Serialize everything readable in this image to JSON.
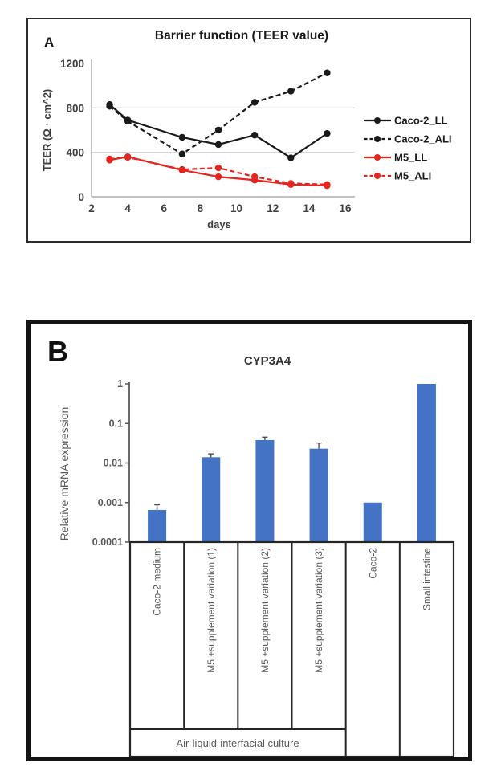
{
  "panel_a": {
    "label": "A",
    "title": "Barrier function (TEER value)",
    "chart_data": {
      "type": "line",
      "x": [
        3,
        4,
        7,
        9,
        11,
        13,
        15
      ],
      "xlabel": "days",
      "ylabel": "TEER (Ω · cm^2)",
      "xticks": [
        2,
        4,
        6,
        8,
        10,
        12,
        14,
        16
      ],
      "yticks": [
        0,
        400,
        800,
        1200
      ],
      "xlim": [
        2,
        16
      ],
      "ylim": [
        0,
        1200
      ],
      "gridlines_y": [
        400,
        800
      ],
      "grid": true,
      "legend_position": "right",
      "series": [
        {
          "name": "Caco-2_LL",
          "color": "#1a1a1a",
          "dash": "solid",
          "values": [
            830,
            690,
            535,
            470,
            555,
            350,
            570
          ]
        },
        {
          "name": "Caco-2_ALI",
          "color": "#1a1a1a",
          "dash": "dashed",
          "values": [
            815,
            680,
            385,
            600,
            850,
            950,
            1115
          ]
        },
        {
          "name": "M5_LL",
          "color": "#e8241f",
          "dash": "solid",
          "values": [
            330,
            360,
            240,
            180,
            150,
            110,
            100
          ]
        },
        {
          "name": "M5_ALI",
          "color": "#e8241f",
          "dash": "dashed",
          "values": [
            340,
            355,
            245,
            260,
            180,
            120,
            110
          ]
        }
      ]
    }
  },
  "panel_b": {
    "label": "B",
    "title": "CYP3A4",
    "group_label": "Air-liquid-interfacial culture",
    "chart_data": {
      "type": "bar",
      "scale": "log",
      "ylabel": "Relative mRNA expression",
      "yticks": [
        "1",
        "0.1",
        "0.01",
        "0.001",
        "0.0001"
      ],
      "ylim": [
        0.0001,
        1
      ],
      "grid": false,
      "bar_color": "#4472c4",
      "categories": [
        "Caco-2 medium",
        "M5 +supplement variation (1)",
        "M5 +supplement variation (2)",
        "M5 +supplement variation (3)",
        "Caco-2",
        "Small intestine"
      ],
      "values": [
        0.00065,
        0.014,
        0.038,
        0.023,
        0.001,
        1
      ],
      "error_top": [
        0.00088,
        0.017,
        0.045,
        0.032,
        null,
        null
      ],
      "group_span": [
        0,
        3
      ]
    }
  }
}
